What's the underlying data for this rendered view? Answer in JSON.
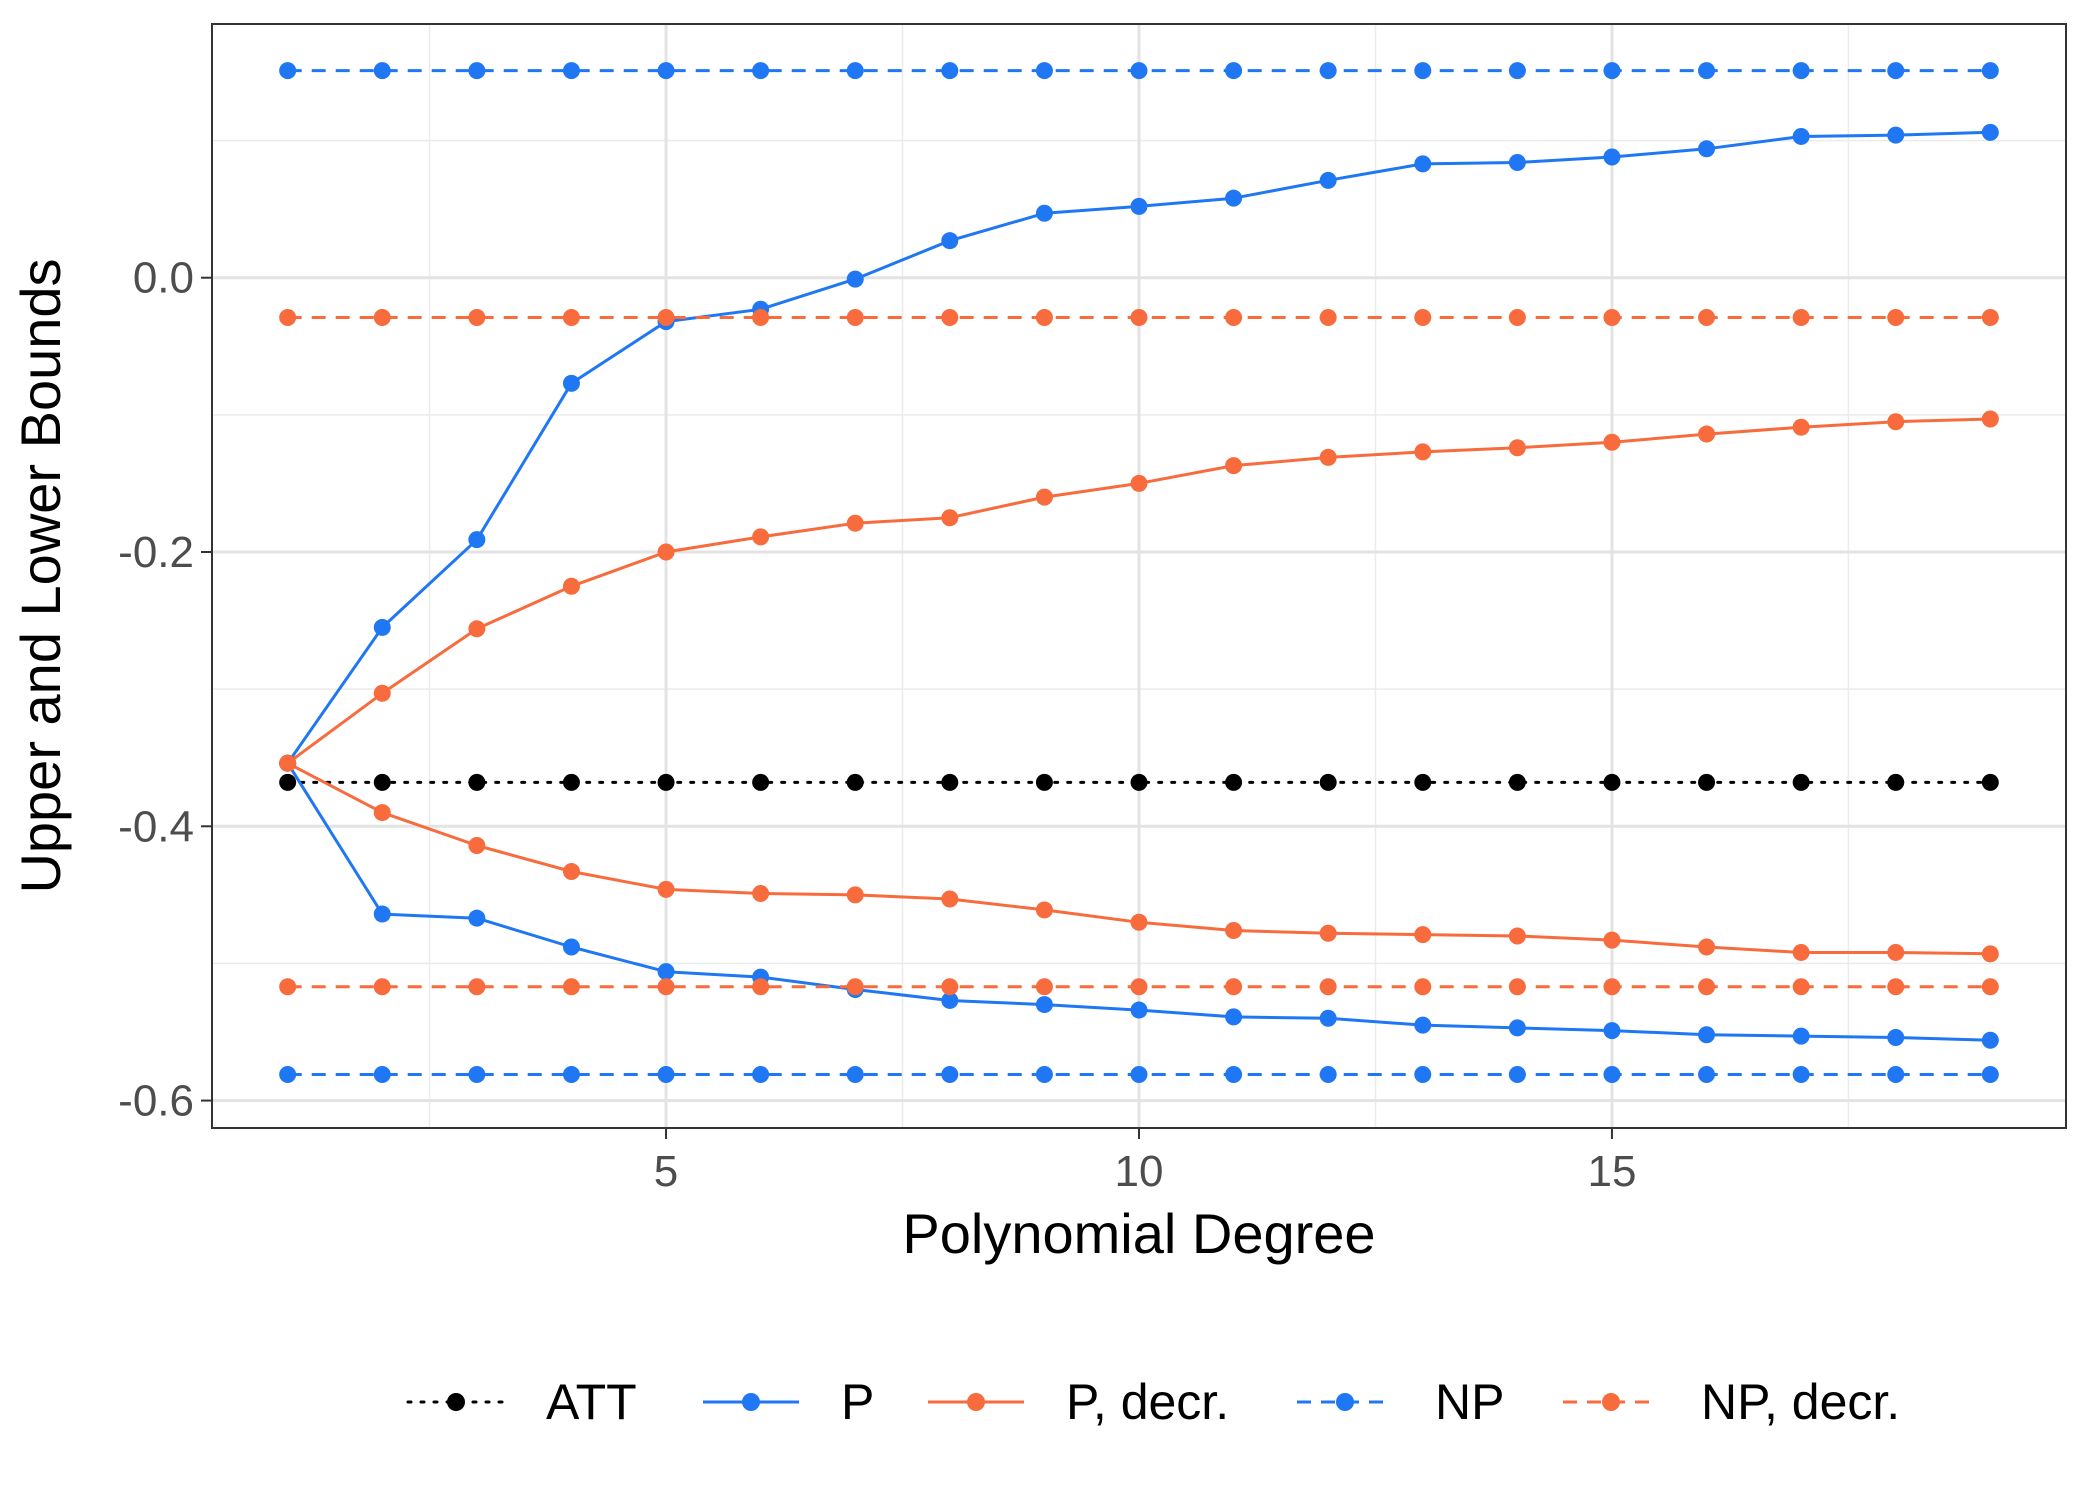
{
  "chart_data": {
    "type": "line",
    "xlabel": "Polynomial Degree",
    "ylabel": "Upper and Lower Bounds",
    "xlim": [
      0.2,
      19.8
    ],
    "ylim": [
      -0.62,
      0.185
    ],
    "x_ticks": [
      5,
      10,
      15
    ],
    "x_tick_labels": [
      "5",
      "10",
      "15"
    ],
    "x_minor_ticks": [
      2.5,
      7.5,
      12.5,
      17.5
    ],
    "y_ticks": [
      0.0,
      -0.2,
      -0.4,
      -0.6
    ],
    "y_tick_labels": [
      "0.0",
      "-0.2",
      "-0.4",
      "-0.6"
    ],
    "y_minor_ticks": [
      0.1,
      -0.1,
      -0.3,
      -0.5
    ],
    "grid": true,
    "legend_position": "bottom",
    "x": [
      1,
      2,
      3,
      4,
      5,
      6,
      7,
      8,
      9,
      10,
      11,
      12,
      13,
      14,
      15,
      16,
      17,
      18,
      19
    ],
    "series": [
      {
        "name": "ATT",
        "legend_key": "ATT",
        "color": "#000000",
        "line": "dotted",
        "values": [
          -0.368,
          -0.368,
          -0.368,
          -0.368,
          -0.368,
          -0.368,
          -0.368,
          -0.368,
          -0.368,
          -0.368,
          -0.368,
          -0.368,
          -0.368,
          -0.368,
          -0.368,
          -0.368,
          -0.368,
          -0.368,
          -0.368
        ]
      },
      {
        "name": "P",
        "legend_key": "P",
        "color": "#1f77f4",
        "line": "solid",
        "values": [
          -0.354,
          -0.255,
          -0.191,
          -0.077,
          -0.032,
          -0.023,
          -0.001,
          0.027,
          0.047,
          0.052,
          0.058,
          0.071,
          0.083,
          0.084,
          0.088,
          0.094,
          0.103,
          0.104,
          0.106
        ]
      },
      {
        "name": "P, lower",
        "legend_key": "P",
        "color": "#1f77f4",
        "line": "solid",
        "values": [
          -0.354,
          -0.464,
          -0.467,
          -0.488,
          -0.506,
          -0.51,
          -0.519,
          -0.527,
          -0.53,
          -0.534,
          -0.539,
          -0.54,
          -0.545,
          -0.547,
          -0.549,
          -0.552,
          -0.553,
          -0.554,
          -0.556
        ]
      },
      {
        "name": "P, decr.",
        "legend_key": "P, decr.",
        "color": "#f76b3c",
        "line": "solid",
        "values": [
          -0.354,
          -0.303,
          -0.256,
          -0.225,
          -0.2,
          -0.189,
          -0.179,
          -0.175,
          -0.16,
          -0.15,
          -0.137,
          -0.131,
          -0.127,
          -0.124,
          -0.12,
          -0.114,
          -0.109,
          -0.105,
          -0.103
        ]
      },
      {
        "name": "P, decr. lower",
        "legend_key": "P, decr.",
        "color": "#f76b3c",
        "line": "solid",
        "values": [
          -0.354,
          -0.39,
          -0.414,
          -0.433,
          -0.446,
          -0.449,
          -0.45,
          -0.453,
          -0.461,
          -0.47,
          -0.476,
          -0.478,
          -0.479,
          -0.48,
          -0.483,
          -0.488,
          -0.492,
          -0.492,
          -0.493
        ]
      },
      {
        "name": "NP",
        "legend_key": "NP",
        "color": "#1f77f4",
        "line": "dashed",
        "values": [
          0.151,
          0.151,
          0.151,
          0.151,
          0.151,
          0.151,
          0.151,
          0.151,
          0.151,
          0.151,
          0.151,
          0.151,
          0.151,
          0.151,
          0.151,
          0.151,
          0.151,
          0.151,
          0.151
        ]
      },
      {
        "name": "NP, lower",
        "legend_key": "NP",
        "color": "#1f77f4",
        "line": "dashed",
        "values": [
          -0.581,
          -0.581,
          -0.581,
          -0.581,
          -0.581,
          -0.581,
          -0.581,
          -0.581,
          -0.581,
          -0.581,
          -0.581,
          -0.581,
          -0.581,
          -0.581,
          -0.581,
          -0.581,
          -0.581,
          -0.581,
          -0.581
        ]
      },
      {
        "name": "NP, decr.",
        "legend_key": "NP, decr.",
        "color": "#f76b3c",
        "line": "dashed",
        "values": [
          -0.029,
          -0.029,
          -0.029,
          -0.029,
          -0.029,
          -0.029,
          -0.029,
          -0.029,
          -0.029,
          -0.029,
          -0.029,
          -0.029,
          -0.029,
          -0.029,
          -0.029,
          -0.029,
          -0.029,
          -0.029,
          -0.029
        ]
      },
      {
        "name": "NP, decr. lower",
        "legend_key": "NP, decr.",
        "color": "#f76b3c",
        "line": "dashed",
        "values": [
          -0.517,
          -0.517,
          -0.517,
          -0.517,
          -0.517,
          -0.517,
          -0.517,
          -0.517,
          -0.517,
          -0.517,
          -0.517,
          -0.517,
          -0.517,
          -0.517,
          -0.517,
          -0.517,
          -0.517,
          -0.517,
          -0.517
        ]
      }
    ],
    "legend": [
      {
        "label": "ATT",
        "color": "#000000",
        "line": "dotted"
      },
      {
        "label": "P",
        "color": "#1f77f4",
        "line": "solid"
      },
      {
        "label": "P, decr.",
        "color": "#f76b3c",
        "line": "solid"
      },
      {
        "label": "NP",
        "color": "#1f77f4",
        "line": "dashed"
      },
      {
        "label": "NP, decr.",
        "color": "#f76b3c",
        "line": "dashed"
      }
    ]
  }
}
